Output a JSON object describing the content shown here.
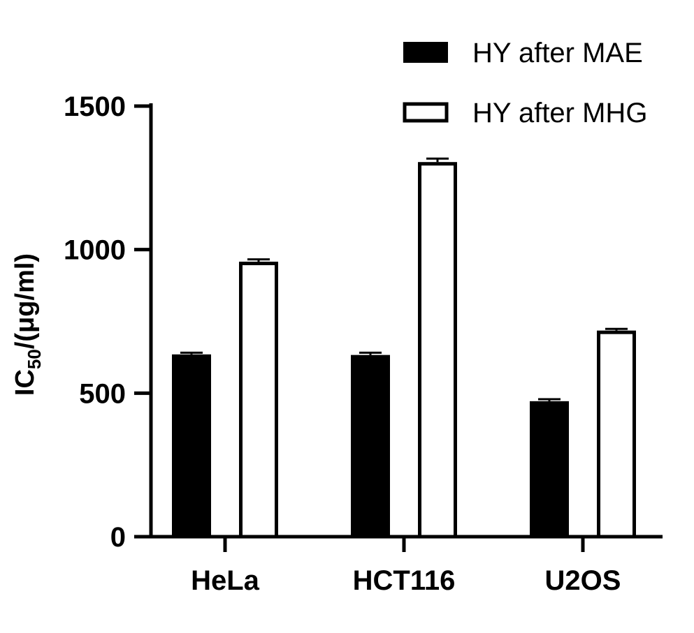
{
  "chart_data": {
    "type": "bar",
    "title": "",
    "xlabel": "",
    "ylabel": {
      "main": "IC",
      "subscript": "50",
      "suffix": "/(μg/ml)"
    },
    "ylim": [
      0,
      1500
    ],
    "yticks": [
      "0",
      "500",
      "1000",
      "1500"
    ],
    "categories": [
      "HeLa",
      "HCT116",
      "U2OS"
    ],
    "series": [
      {
        "name": "HY after MAE",
        "fill": "#000000",
        "values": [
          635,
          633,
          472
        ],
        "errors": [
          6,
          8,
          7
        ]
      },
      {
        "name": "HY after MHG",
        "fill": "#ffffff",
        "values": [
          958,
          1305,
          718
        ],
        "errors": [
          8,
          12,
          6
        ]
      }
    ],
    "legend_position": "top-right",
    "grid": false
  }
}
